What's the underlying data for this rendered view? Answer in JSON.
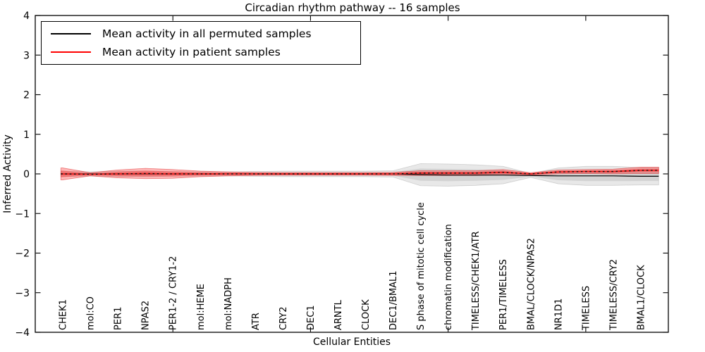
{
  "figure": {
    "title": "Circadian rhythm pathway -- 16 samples",
    "background": "#ffffff"
  },
  "legend": {
    "items": [
      {
        "label": "Mean activity in all permuted samples",
        "color": "#000000"
      },
      {
        "label": "Mean activity in patient samples",
        "color": "#ff0000"
      }
    ]
  },
  "chart_data": {
    "type": "line",
    "title": "Circadian rhythm pathway -- 16 samples",
    "xlabel": "Cellular Entities",
    "ylabel": "Inferred Activity",
    "xlim": [
      0,
      23
    ],
    "ylim": [
      -4,
      4
    ],
    "grid": false,
    "legend_position": "upper-left",
    "y_ticks": [
      -4,
      -3,
      -2,
      -1,
      0,
      1,
      2,
      3,
      4
    ],
    "x_major_ticks": [
      5,
      10,
      15,
      20
    ],
    "x_data_range": [
      0.93,
      22.65
    ],
    "categories": [
      "CHEK1",
      "mol:CO",
      "PER1",
      "NPAS2",
      "PER1-2 / CRY1-2",
      "mol:HEME",
      "mol:NADPH",
      "ATR",
      "CRY2",
      "DEC1",
      "ARNTL",
      "CLOCK",
      "DEC1/BMAL1",
      "S phase of mitotic cell cycle",
      "chromatin modification",
      "TIMELESS/CHEK1/ATR",
      "PER1/TIMELESS",
      "BMAL/CLOCK/NPAS2",
      "NR1D1",
      "TIMELESS",
      "TIMELESS/CRY2",
      "BMAL1/CLOCK"
    ],
    "series": [
      {
        "name": "Mean activity in all permuted samples",
        "slug": "permuted-mean-line",
        "color": "#000000",
        "width": 1.2,
        "values": [
          0,
          0,
          0,
          0,
          0,
          0,
          0,
          0,
          0,
          0,
          0,
          0,
          0,
          -0.02,
          -0.03,
          -0.03,
          -0.03,
          -0.04,
          -0.05,
          -0.05,
          -0.05,
          -0.06
        ]
      },
      {
        "name": "Mean activity in patient samples",
        "slug": "patient-mean-line",
        "color": "#f51d1d",
        "width": 1.7,
        "marker_overlay": "#141414",
        "values": [
          0,
          -0.01,
          0,
          0.01,
          0,
          0,
          0,
          0,
          0,
          0,
          0,
          0,
          0,
          0.02,
          0.02,
          0.02,
          0.04,
          0,
          0.05,
          0.06,
          0.06,
          0.09
        ]
      }
    ],
    "bands": [
      {
        "name": "permuted-activity-band",
        "fill": "rgba(0,0,0,0.09)",
        "edge": "rgba(0,0,0,0.14)",
        "center": [
          0,
          0,
          0,
          0,
          0,
          0,
          0,
          0,
          0,
          0,
          0,
          0,
          0,
          -0.02,
          -0.03,
          -0.03,
          -0.03,
          -0.04,
          -0.05,
          -0.05,
          -0.05,
          -0.06
        ],
        "half_width": [
          0.07,
          0.05,
          0.07,
          0.07,
          0.06,
          0.05,
          0.05,
          0.06,
          0.07,
          0.07,
          0.07,
          0.07,
          0.08,
          0.28,
          0.28,
          0.26,
          0.22,
          0.05,
          0.2,
          0.24,
          0.24,
          0.22
        ]
      },
      {
        "name": "patient-activity-band",
        "fill": "rgba(255,0,0,0.28)",
        "edge": "rgba(215,0,0,0.45)",
        "center": [
          0,
          -0.01,
          0,
          0.01,
          0,
          0,
          0,
          0,
          0,
          0,
          0,
          0,
          0,
          0.02,
          0.02,
          0.02,
          0.04,
          0,
          0.05,
          0.06,
          0.06,
          0.09
        ],
        "half_width": [
          0.15,
          0.04,
          0.1,
          0.13,
          0.11,
          0.07,
          0.05,
          0.04,
          0.035,
          0.035,
          0.035,
          0.035,
          0.04,
          0.06,
          0.06,
          0.06,
          0.07,
          0.03,
          0.05,
          0.05,
          0.06,
          0.08
        ]
      }
    ]
  }
}
